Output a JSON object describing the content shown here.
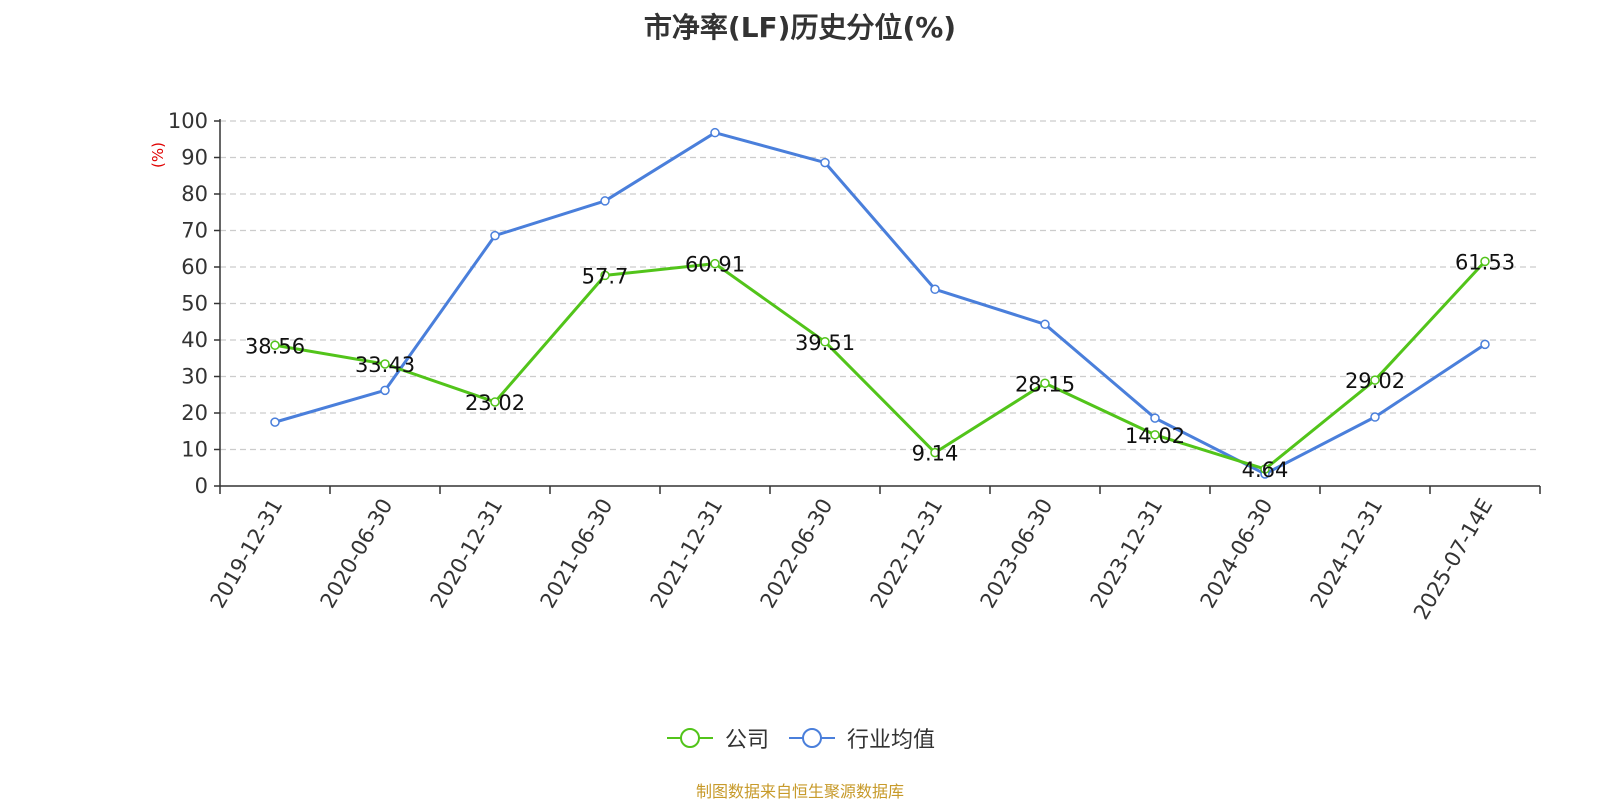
{
  "chart_data": {
    "type": "line",
    "title": "市净率(LF)历史分位(%)",
    "ylabel": "(%)",
    "ylim": [
      0,
      100
    ],
    "yticks": [
      0,
      10,
      20,
      30,
      40,
      50,
      60,
      70,
      80,
      90,
      100
    ],
    "grid": true,
    "legend_position": "bottom",
    "categories": [
      "2019-12-31",
      "2020-06-30",
      "2020-12-31",
      "2021-06-30",
      "2021-12-31",
      "2022-06-30",
      "2022-12-31",
      "2023-06-30",
      "2023-12-31",
      "2024-06-30",
      "2024-12-31",
      "2025-07-14E"
    ],
    "series": [
      {
        "name": "公司",
        "color": "#52c41a",
        "show_labels": true,
        "values": [
          38.56,
          33.43,
          23.02,
          57.7,
          60.91,
          39.51,
          9.14,
          28.15,
          14.02,
          4.64,
          29.02,
          61.53
        ]
      },
      {
        "name": "行业均值",
        "color": "#4a7fdb",
        "show_labels": false,
        "values": [
          17.5,
          26.2,
          68.6,
          78.1,
          96.8,
          88.6,
          53.9,
          44.3,
          18.6,
          3.3,
          18.9,
          38.8
        ]
      }
    ]
  },
  "footer": {
    "source": "制图数据来自恒生聚源数据库"
  }
}
